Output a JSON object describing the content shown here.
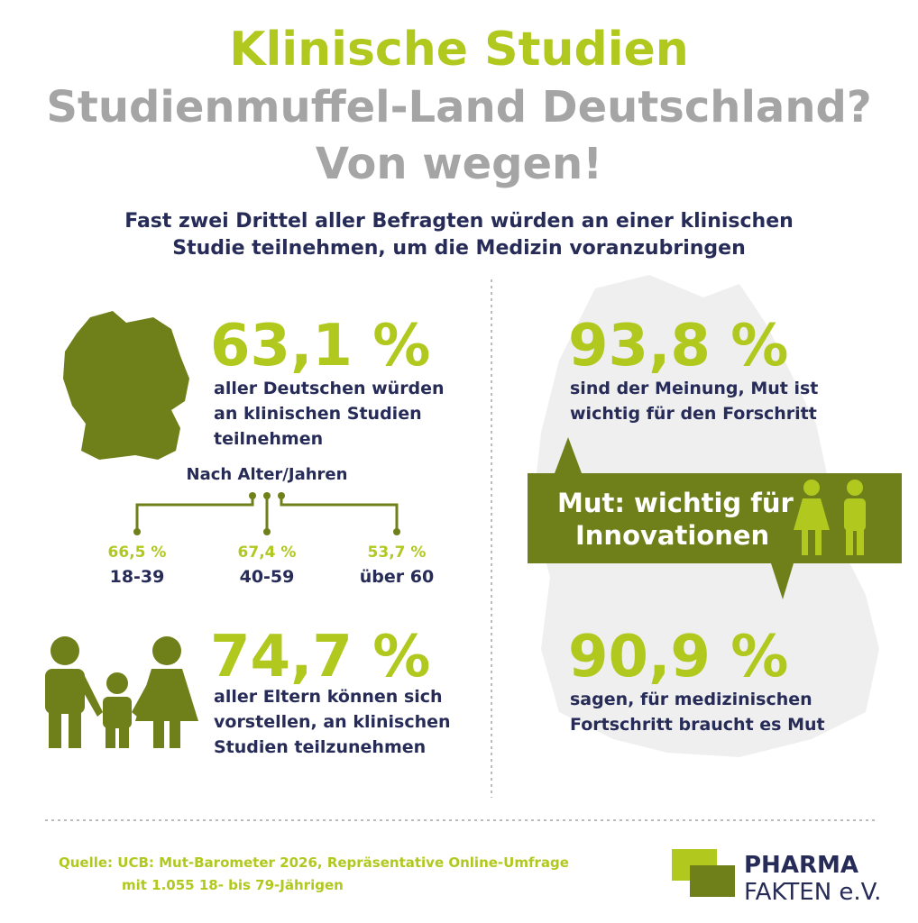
{
  "header": {
    "title": "Klinische Studien",
    "subtitle_lines": [
      "Studienmuffel-Land Deutschland?",
      "Von wegen!"
    ],
    "lead_lines": [
      "Fast zwei Drittel aller Befragten würden an einer klinischen",
      "Studie teilnehmen, um die Medizin voranzubringen"
    ]
  },
  "left": {
    "germany": {
      "value": "63,1 %",
      "text_lines": [
        "aller Deutschen würden",
        "an klinischen Studien",
        "teilnehmen"
      ]
    },
    "age": {
      "heading": "Nach Alter/Jahren",
      "groups": [
        {
          "value": "66,5 %",
          "label": "18-39"
        },
        {
          "value": "67,4 %",
          "label": "40-59"
        },
        {
          "value": "53,7 %",
          "label": "über 60"
        }
      ]
    },
    "parents": {
      "value": "74,7 %",
      "text_lines": [
        "aller Eltern können sich",
        "vorstellen, an klinischen",
        "Studien teilzunehmen"
      ]
    }
  },
  "right": {
    "top": {
      "value": "93,8 %",
      "text_lines": [
        "sind der Meinung, Mut ist",
        "wichtig für den Forschritt"
      ]
    },
    "banner_lines": [
      "Mut: wichtig für",
      "Innovationen"
    ],
    "bottom": {
      "value": "90,9 %",
      "text_lines": [
        "sagen, für medizinischen",
        "Fortschritt braucht es Mut"
      ]
    }
  },
  "footer": {
    "source_lines": [
      "Quelle: UCB: Mut-Barometer 2026, Repräsentative Online-Umfrage",
      "mit 1.055 18- bis 79-Jährigen"
    ],
    "logo": [
      "PHARMA",
      "FAKTEN e.V."
    ]
  }
}
